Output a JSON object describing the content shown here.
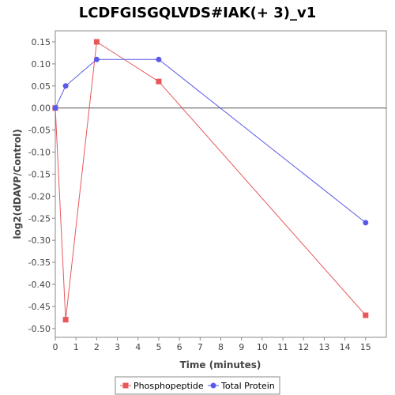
{
  "chart_data": {
    "type": "line",
    "title": "LCDFGISGQLVDS#IAK(+ 3)_v1",
    "xlabel": "Time (minutes)",
    "ylabel": "log2(dDAVP/Control)",
    "xlim": [
      0,
      16
    ],
    "ylim": [
      -0.52,
      0.175
    ],
    "x_ticks": [
      0,
      1,
      2,
      3,
      4,
      5,
      6,
      7,
      8,
      9,
      10,
      11,
      12,
      13,
      14,
      15
    ],
    "y_ticks": [
      0.15,
      0.1,
      0.05,
      0.0,
      -0.05,
      -0.1,
      -0.15,
      -0.2,
      -0.25,
      -0.3,
      -0.35,
      -0.4,
      -0.45,
      -0.5
    ],
    "y_tick_labels": [
      "0.15",
      "0.10",
      "0.05",
      "0.00",
      "-0.05",
      "-0.10",
      "-0.15",
      "-0.20",
      "-0.25",
      "-0.30",
      "-0.35",
      "-0.40",
      "-0.45",
      "-0.50"
    ],
    "grid": false,
    "zero_line": true,
    "legend_position": "bottom",
    "series": [
      {
        "name": "Phosphopeptide",
        "color": "#e8585a",
        "marker": "square",
        "x": [
          0,
          0.5,
          2,
          5,
          15
        ],
        "y": [
          0.0,
          -0.48,
          0.15,
          0.06,
          -0.47
        ]
      },
      {
        "name": "Total Protein",
        "color": "#5a5ae8",
        "marker": "circle",
        "x": [
          0,
          0.5,
          2,
          5,
          15
        ],
        "y": [
          0.0,
          0.05,
          0.11,
          0.11,
          -0.26
        ]
      }
    ]
  }
}
